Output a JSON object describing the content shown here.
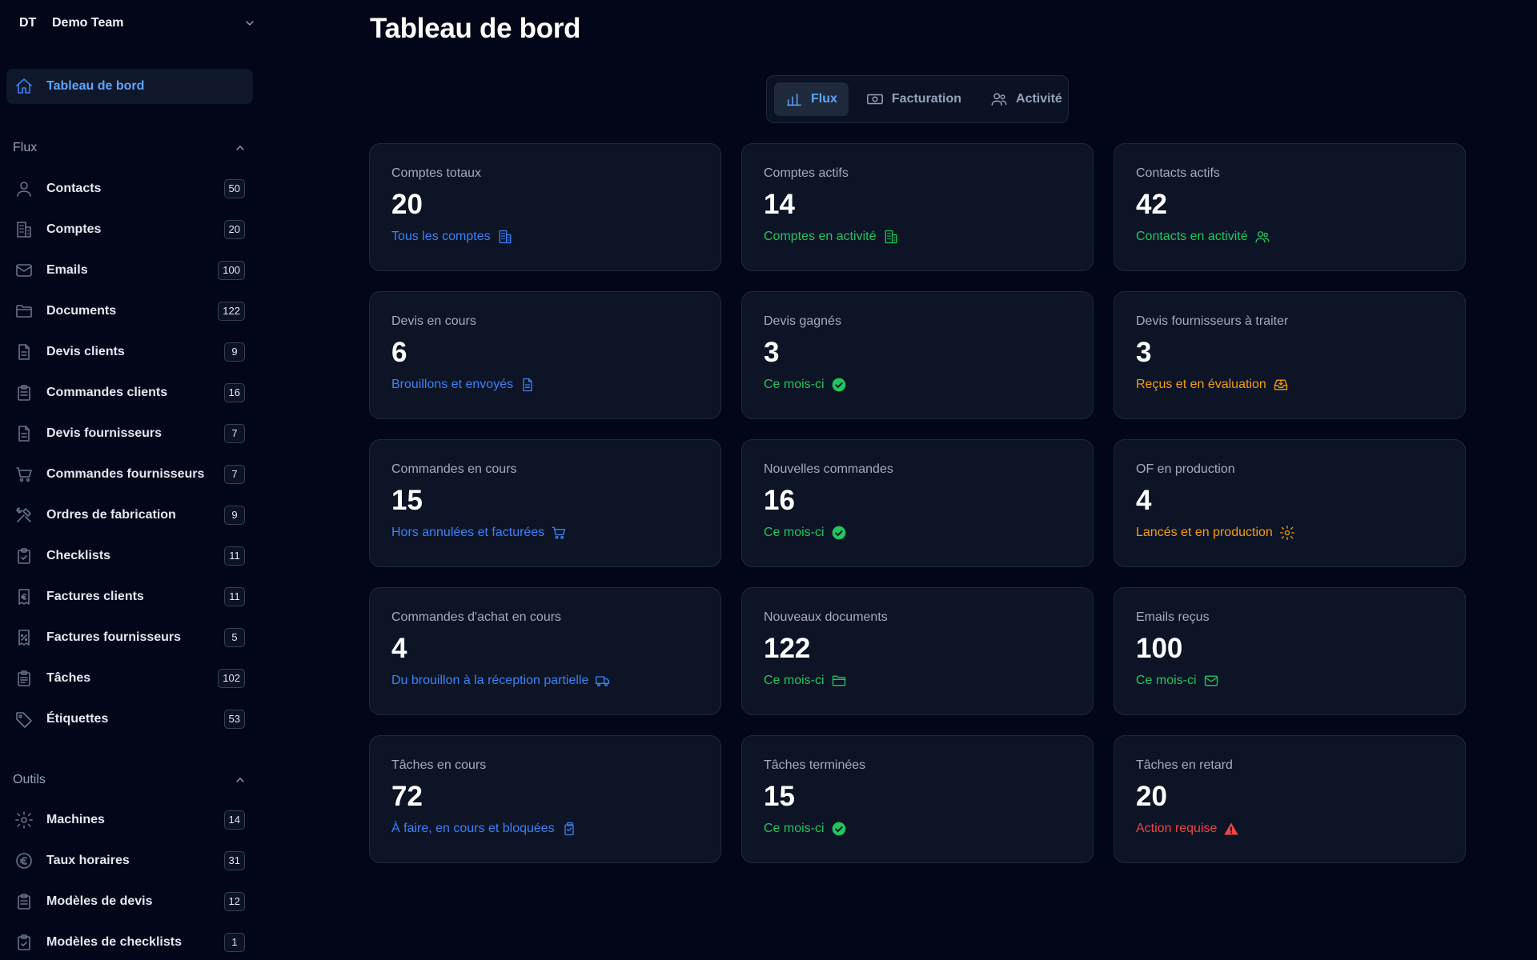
{
  "team": {
    "abbr": "DT",
    "name": "Demo Team"
  },
  "nav_active": {
    "label": "Tableau de bord",
    "icon": "home-icon"
  },
  "sections": {
    "flux": {
      "title": "Flux",
      "items": [
        {
          "label": "Contacts",
          "count": "50",
          "icon": "user-icon"
        },
        {
          "label": "Comptes",
          "count": "20",
          "icon": "building-icon"
        },
        {
          "label": "Emails",
          "count": "100",
          "icon": "mail-icon"
        },
        {
          "label": "Documents",
          "count": "122",
          "icon": "folder-icon"
        },
        {
          "label": "Devis clients",
          "count": "9",
          "icon": "document-icon"
        },
        {
          "label": "Commandes clients",
          "count": "16",
          "icon": "clipboard-icon"
        },
        {
          "label": "Devis fournisseurs",
          "count": "7",
          "icon": "document-icon"
        },
        {
          "label": "Commandes fournisseurs",
          "count": "7",
          "icon": "cart-icon"
        },
        {
          "label": "Ordres de fabrication",
          "count": "9",
          "icon": "tools-icon"
        },
        {
          "label": "Checklists",
          "count": "11",
          "icon": "clipboard-check-icon"
        },
        {
          "label": "Factures clients",
          "count": "11",
          "icon": "invoice-euro-icon"
        },
        {
          "label": "Factures fournisseurs",
          "count": "5",
          "icon": "receipt-percent-icon"
        },
        {
          "label": "Tâches",
          "count": "102",
          "icon": "clipboard-list-icon"
        },
        {
          "label": "Étiquettes",
          "count": "53",
          "icon": "tag-icon"
        }
      ]
    },
    "outils": {
      "title": "Outils",
      "items": [
        {
          "label": "Machines",
          "count": "14",
          "icon": "gear-icon"
        },
        {
          "label": "Taux horaires",
          "count": "31",
          "icon": "euro-icon"
        },
        {
          "label": "Modèles de devis",
          "count": "12",
          "icon": "clipboard-icon"
        },
        {
          "label": "Modèles de checklists",
          "count": "1",
          "icon": "clipboard-check-icon"
        }
      ]
    }
  },
  "page_title": "Tableau de bord",
  "tabs": [
    {
      "label": "Flux",
      "icon": "bar-chart-icon",
      "active": true
    },
    {
      "label": "Facturation",
      "icon": "banknote-icon",
      "active": false
    },
    {
      "label": "Activité",
      "icon": "users-icon",
      "active": false
    }
  ],
  "colors": {
    "blue": "#3b82f6",
    "green": "#22c55e",
    "amber": "#f59e0b",
    "red": "#ef4444"
  },
  "cards": [
    {
      "label": "Comptes totaux",
      "value": "20",
      "sub": "Tous les comptes",
      "tone": "blue",
      "icon": "building-icon"
    },
    {
      "label": "Comptes actifs",
      "value": "14",
      "sub": "Comptes en activité",
      "tone": "green",
      "icon": "building-icon"
    },
    {
      "label": "Contacts actifs",
      "value": "42",
      "sub": "Contacts en activité",
      "tone": "green",
      "icon": "users-icon"
    },
    {
      "label": "Devis en cours",
      "value": "6",
      "sub": "Brouillons et envoyés",
      "tone": "blue",
      "icon": "document-icon"
    },
    {
      "label": "Devis gagnés",
      "value": "3",
      "sub": "Ce mois-ci",
      "tone": "green",
      "icon": "check-circle-icon"
    },
    {
      "label": "Devis fournisseurs à traiter",
      "value": "3",
      "sub": "Reçus et en évaluation",
      "tone": "amber",
      "icon": "inbox-icon"
    },
    {
      "label": "Commandes en cours",
      "value": "15",
      "sub": "Hors annulées et facturées",
      "tone": "blue",
      "icon": "cart-icon"
    },
    {
      "label": "Nouvelles commandes",
      "value": "16",
      "sub": "Ce mois-ci",
      "tone": "green",
      "icon": "check-circle-icon"
    },
    {
      "label": "OF en production",
      "value": "4",
      "sub": "Lancés et en production",
      "tone": "amber",
      "icon": "gear-icon"
    },
    {
      "label": "Commandes d'achat en cours",
      "value": "4",
      "sub": "Du brouillon à la réception partielle",
      "tone": "blue",
      "icon": "truck-icon"
    },
    {
      "label": "Nouveaux documents",
      "value": "122",
      "sub": "Ce mois-ci",
      "tone": "green",
      "icon": "folder-icon"
    },
    {
      "label": "Emails reçus",
      "value": "100",
      "sub": "Ce mois-ci",
      "tone": "green",
      "icon": "mail-icon"
    },
    {
      "label": "Tâches en cours",
      "value": "72",
      "sub": "À faire, en cours et bloquées",
      "tone": "blue",
      "icon": "clipboard-copy-icon"
    },
    {
      "label": "Tâches terminées",
      "value": "15",
      "sub": "Ce mois-ci",
      "tone": "green",
      "icon": "check-circle-icon"
    },
    {
      "label": "Tâches en retard",
      "value": "20",
      "sub": "Action requise",
      "tone": "red",
      "icon": "warning-icon"
    }
  ]
}
